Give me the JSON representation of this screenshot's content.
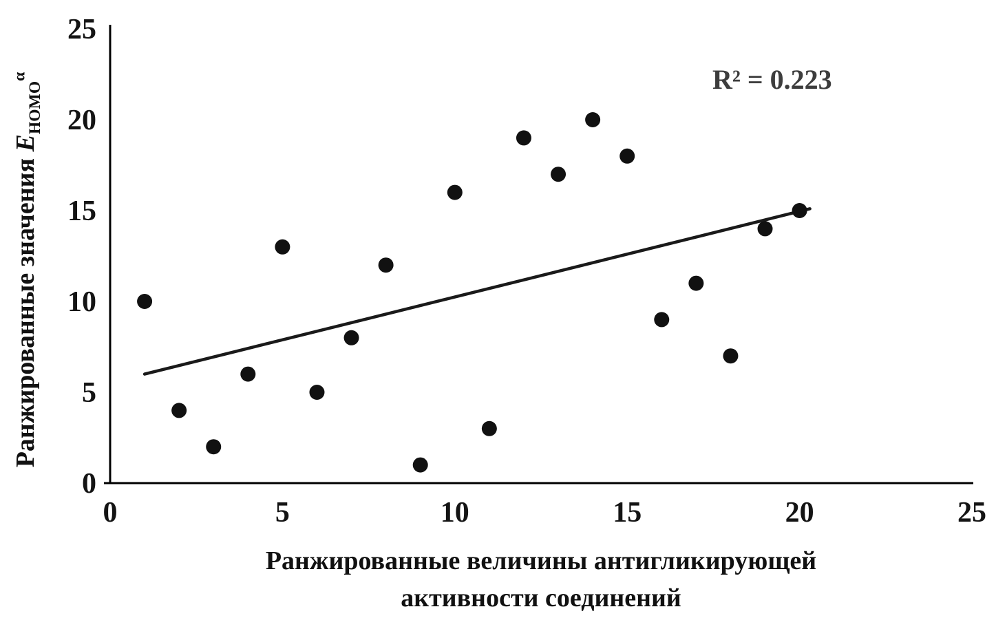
{
  "chart_data": {
    "type": "scatter",
    "title": "",
    "xlabel_line1": "Ранжированные величины антигликирующей",
    "xlabel_line2": "активности соединений",
    "ylabel_prefix": "Ранжированные значения ",
    "ylabel_symbol": "E",
    "ylabel_subscript": "НОМО",
    "ylabel_superscript": "α",
    "annotation": "R² = 0.223",
    "xlim": [
      0,
      25
    ],
    "ylim": [
      0,
      25
    ],
    "x_ticks": [
      0,
      5,
      10,
      15,
      20,
      25
    ],
    "y_ticks": [
      0,
      5,
      10,
      15,
      20,
      25
    ],
    "grid": false,
    "legend": false,
    "points": [
      [
        1,
        10
      ],
      [
        2,
        4
      ],
      [
        3,
        2
      ],
      [
        4,
        6
      ],
      [
        5,
        13
      ],
      [
        6,
        5
      ],
      [
        7,
        8
      ],
      [
        8,
        12
      ],
      [
        9,
        1
      ],
      [
        10,
        16
      ],
      [
        11,
        3
      ],
      [
        12,
        19
      ],
      [
        13,
        17
      ],
      [
        14,
        20
      ],
      [
        15,
        18
      ],
      [
        16,
        9
      ],
      [
        17,
        11
      ],
      [
        18,
        7
      ],
      [
        19,
        14
      ],
      [
        20,
        15
      ]
    ],
    "trendline": {
      "x1": 1,
      "y1": 6.0,
      "x2": 20.3,
      "y2": 15.1
    },
    "marker_color": "#111111",
    "line_color": "#1a1a1a",
    "axis_color": "#000000",
    "background": "#ffffff"
  }
}
